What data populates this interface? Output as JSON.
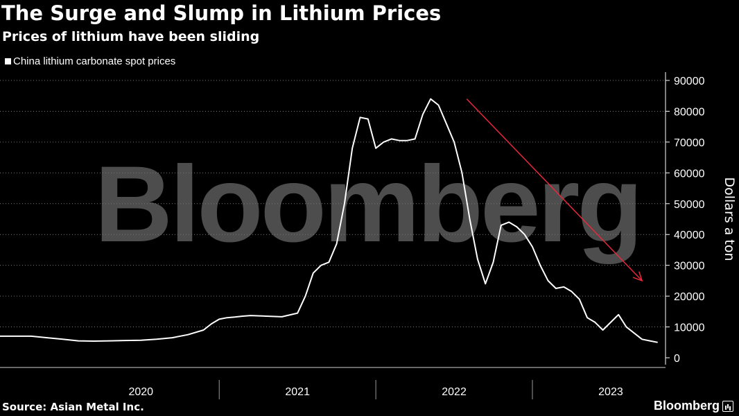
{
  "header": {
    "title": "The Surge and Slump in Lithium Prices",
    "subtitle": "Prices of lithium have been sliding"
  },
  "legend": {
    "label": "China lithium carbonate spot prices"
  },
  "footer": {
    "source": "Source: Asian Metal Inc.",
    "brand": "Bloomberg"
  },
  "watermark": "Bloomberg",
  "colors": {
    "background": "#000000",
    "line": "#ffffff",
    "trend_arrow": "#e8283c",
    "grid": "#7a7a7a",
    "watermark": "#4d4d4d"
  },
  "chart_data": {
    "type": "line",
    "ylabel": "Dollars a ton",
    "ylim": [
      0,
      90000
    ],
    "yticks": [
      0,
      10000,
      20000,
      30000,
      40000,
      50000,
      60000,
      70000,
      80000,
      90000
    ],
    "xlim": [
      2019.6,
      2023.85
    ],
    "xticks": [
      {
        "label": "2020",
        "value": 2020.5
      },
      {
        "label": "2021",
        "value": 2021.5
      },
      {
        "label": "2022",
        "value": 2022.5
      },
      {
        "label": "2023",
        "value": 2023.5
      }
    ],
    "x_boundaries": [
      2021.0,
      2022.0,
      2023.0
    ],
    "grid": "horizontal dotted",
    "series": [
      {
        "name": "China lithium carbonate spot prices",
        "x": [
          2019.6,
          2019.8,
          2019.9,
          2020.0,
          2020.1,
          2020.2,
          2020.3,
          2020.4,
          2020.5,
          2020.6,
          2020.7,
          2020.8,
          2020.9,
          2020.95,
          2021.0,
          2021.05,
          2021.1,
          2021.15,
          2021.2,
          2021.3,
          2021.4,
          2021.5,
          2021.55,
          2021.6,
          2021.65,
          2021.7,
          2021.75,
          2021.8,
          2021.85,
          2021.9,
          2021.95,
          2022.0,
          2022.05,
          2022.1,
          2022.15,
          2022.2,
          2022.25,
          2022.3,
          2022.35,
          2022.4,
          2022.45,
          2022.5,
          2022.55,
          2022.6,
          2022.65,
          2022.7,
          2022.75,
          2022.8,
          2022.85,
          2022.9,
          2022.95,
          2023.0,
          2023.05,
          2023.1,
          2023.15,
          2023.2,
          2023.25,
          2023.3,
          2023.35,
          2023.4,
          2023.45,
          2023.5,
          2023.55,
          2023.6,
          2023.65,
          2023.7,
          2023.75,
          2023.8
        ],
        "y": [
          7000,
          7000,
          6500,
          6000,
          5500,
          5400,
          5500,
          5600,
          5700,
          6000,
          6500,
          7500,
          9000,
          11000,
          12500,
          13000,
          13200,
          13500,
          13700,
          13500,
          13300,
          14500,
          20000,
          27500,
          30000,
          31000,
          37000,
          50000,
          68000,
          78000,
          77500,
          68000,
          70000,
          71000,
          70500,
          70500,
          71000,
          79000,
          84000,
          82000,
          76000,
          70000,
          60000,
          45000,
          32000,
          24000,
          31000,
          43000,
          44000,
          42500,
          40000,
          36000,
          30000,
          25000,
          22500,
          23000,
          21500,
          19000,
          13000,
          11500,
          9000,
          11500,
          14000,
          10000,
          8000,
          6000,
          5500,
          5000
        ]
      }
    ],
    "trend_arrow": {
      "x1": 2022.58,
      "y1": 84000,
      "x2": 2023.7,
      "y2": 25000
    }
  }
}
